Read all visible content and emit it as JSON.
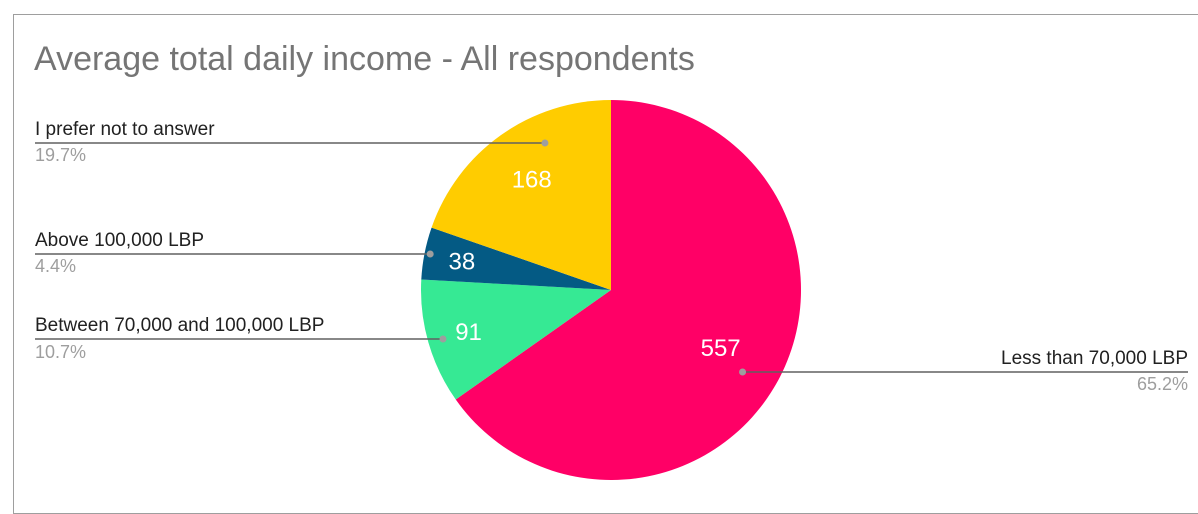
{
  "chart_data": {
    "type": "pie",
    "title": "Average total daily income - All respondents",
    "slices": [
      {
        "label": "Less than 70,000 LBP",
        "value": 557,
        "percent": "65.2%",
        "color": "#ff0066"
      },
      {
        "label": "Between 70,000 and 100,000 LBP",
        "value": 91,
        "percent": "10.7%",
        "color": "#36e994"
      },
      {
        "label": "Above 100,000 LBP",
        "value": 38,
        "percent": "4.4%",
        "color": "#045a84"
      },
      {
        "label": "I prefer not to answer",
        "value": 168,
        "percent": "19.7%",
        "color": "#ffcc00"
      }
    ],
    "legend": "callout-labels",
    "start_angle": "12 o'clock",
    "direction": "clockwise"
  },
  "colors": {
    "title": "#757575",
    "label": "#212121",
    "percent": "#9e9e9e",
    "leader": "#616161",
    "slice_value_text": "#ffffff"
  }
}
